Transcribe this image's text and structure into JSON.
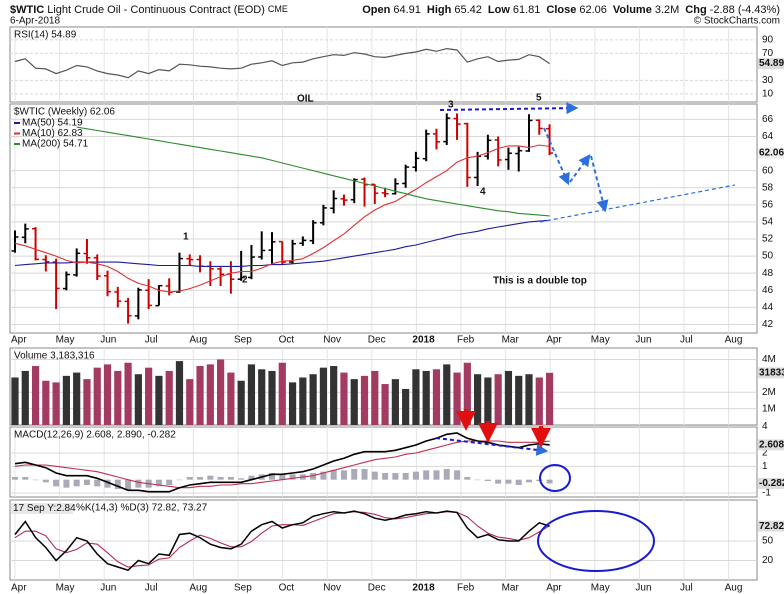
{
  "header": {
    "symbol": "$WTIC",
    "name": "Light Crude Oil - Continuous Contract (EOD)",
    "exchange": "CME",
    "date": "6-Apr-2018",
    "credit": "© StockCharts.com",
    "quote": [
      {
        "label": "Open",
        "value": "64.91"
      },
      {
        "label": "High",
        "value": "65.42"
      },
      {
        "label": "Low",
        "value": "61.81"
      },
      {
        "label": "Close",
        "value": "62.06"
      },
      {
        "label": "Volume",
        "value": "3.2M"
      },
      {
        "label": "Chg",
        "value": "-2.88 (-4.43%)"
      }
    ]
  },
  "x_axis": {
    "labels": [
      "Apr",
      "May",
      "Jun",
      "Jul",
      "Aug",
      "Sep",
      "Oct",
      "Nov",
      "Dec",
      "2018",
      "Feb",
      "Mar",
      "Apr",
      "May",
      "Jun",
      "Jul",
      "Aug"
    ]
  },
  "chart_data": [
    {
      "type": "line",
      "title": "RSI(14) 54.89",
      "color": "#555555",
      "ylim": [
        -2,
        109
      ],
      "yticks": [
        10,
        30,
        70,
        90
      ],
      "grid": true,
      "values": [
        58,
        62,
        48,
        47,
        40,
        45,
        52,
        50,
        44,
        40,
        38,
        34,
        44,
        40,
        46,
        44,
        54,
        53,
        51,
        50,
        48,
        47,
        48,
        54,
        56,
        59,
        52,
        56,
        57,
        62,
        65,
        68,
        67,
        71,
        69,
        65,
        64,
        67,
        70,
        72,
        76,
        73,
        77,
        75,
        57,
        62,
        65,
        58,
        60,
        61,
        68,
        65,
        54.89
      ]
    },
    {
      "type": "ohlc",
      "title": "$WTIC (Weekly) 62.06",
      "up_color": "#000000",
      "down_color": "#cc0000",
      "ylim": [
        41,
        67.8
      ],
      "yticks": [
        42,
        44,
        46,
        48,
        50,
        52,
        54,
        56,
        58,
        60,
        64,
        66
      ],
      "grid": true,
      "open": [
        50.6,
        52.2,
        53.2,
        49.6,
        49.3,
        46.2,
        47.8,
        50.3,
        49.8,
        47.7,
        45.8,
        44.7,
        43.0,
        46.0,
        44.2,
        46.5,
        45.8,
        49.7,
        49.6,
        48.8,
        48.5,
        47.9,
        47.3,
        47.5,
        49.9,
        50.7,
        51.7,
        49.3,
        51.5,
        51.8,
        53.9,
        55.6,
        56.7,
        56.6,
        59.0,
        58.4,
        57.4,
        57.3,
        58.5,
        60.4,
        61.4,
        64.3,
        63.4,
        66.1,
        65.5,
        59.2,
        61.7,
        63.6,
        61.3,
        62.0,
        62.3,
        65.9,
        64.91
      ],
      "high": [
        53.0,
        53.8,
        53.4,
        50.1,
        49.7,
        48.2,
        50.9,
        52.0,
        50.2,
        48.3,
        46.4,
        45.1,
        46.3,
        47.3,
        46.6,
        47.4,
        50.4,
        50.2,
        50.1,
        49.4,
        48.7,
        49.4,
        50.6,
        51.3,
        52.9,
        52.8,
        51.7,
        51.9,
        52.3,
        54.2,
        56.0,
        57.7,
        57.2,
        59.1,
        59.2,
        58.4,
        58.0,
        59.1,
        60.7,
        62.2,
        64.8,
        64.9,
        66.7,
        66.7,
        65.6,
        62.2,
        64.2,
        64.0,
        62.7,
        62.8,
        66.6,
        66.0,
        65.42
      ],
      "low": [
        50.4,
        51.5,
        49.5,
        48.2,
        43.8,
        46.0,
        47.6,
        49.1,
        47.2,
        45.3,
        44.0,
        42.1,
        42.6,
        43.8,
        44.2,
        45.4,
        45.7,
        48.9,
        48.1,
        46.5,
        46.5,
        45.6,
        47.1,
        47.3,
        49.6,
        49.1,
        49.0,
        49.1,
        51.2,
        51.4,
        53.6,
        55.0,
        55.9,
        56.2,
        55.8,
        56.1,
        56.9,
        57.2,
        58.0,
        59.9,
        61.1,
        62.5,
        63.0,
        63.6,
        58.1,
        58.2,
        61.3,
        60.5,
        60.1,
        59.9,
        62.2,
        64.2,
        61.81
      ],
      "close": [
        52.24,
        53.18,
        49.62,
        49.33,
        46.22,
        47.84,
        50.33,
        49.8,
        47.66,
        45.83,
        44.74,
        43.01,
        46.04,
        44.23,
        46.54,
        45.77,
        49.71,
        49.58,
        48.82,
        48.51,
        47.87,
        47.29,
        47.48,
        49.89,
        50.66,
        51.67,
        49.29,
        51.45,
        51.84,
        53.9,
        55.64,
        56.74,
        56.55,
        58.95,
        58.36,
        57.36,
        57.3,
        58.47,
        60.42,
        61.44,
        64.3,
        63.37,
        66.14,
        65.45,
        59.2,
        61.68,
        63.55,
        61.25,
        62.04,
        62.34,
        65.88,
        64.94,
        62.06
      ],
      "series": [
        {
          "name": "MA(50) 54.19",
          "color": "#1c1c9c",
          "values": [
            48.9,
            49.0,
            49.1,
            49.2,
            49.2,
            49.2,
            49.3,
            49.3,
            49.3,
            49.3,
            49.3,
            49.2,
            49.1,
            49.0,
            48.9,
            48.9,
            48.9,
            48.9,
            48.8,
            48.8,
            48.8,
            48.8,
            48.8,
            48.9,
            48.9,
            49.0,
            49.0,
            49.1,
            49.2,
            49.3,
            49.4,
            49.6,
            49.8,
            50.0,
            50.2,
            50.4,
            50.6,
            50.8,
            51.1,
            51.3,
            51.6,
            51.9,
            52.2,
            52.5,
            52.7,
            52.9,
            53.2,
            53.4,
            53.6,
            53.8,
            54.0,
            54.1,
            54.19
          ]
        },
        {
          "name": "MA(10) 62.83",
          "color": "#e03030",
          "values": [
            51.5,
            51.2,
            50.8,
            50.4,
            50.0,
            49.5,
            49.2,
            49.3,
            49.1,
            48.8,
            48.2,
            47.4,
            46.8,
            46.5,
            46.0,
            45.8,
            45.9,
            46.2,
            46.6,
            47.1,
            47.6,
            48.0,
            48.2,
            48.2,
            48.6,
            49.1,
            49.4,
            49.5,
            49.7,
            50.3,
            51.0,
            51.8,
            52.6,
            53.6,
            54.6,
            55.4,
            56.0,
            56.4,
            57.1,
            57.8,
            58.6,
            59.3,
            60.0,
            61.0,
            61.5,
            61.7,
            62.1,
            62.6,
            62.9,
            62.9,
            62.7,
            63.0,
            62.83
          ]
        },
        {
          "name": "MA(200) 54.71",
          "color": "#2e8b2e",
          "values": [
            null,
            null,
            null,
            null,
            null,
            null,
            65.1,
            64.9,
            64.7,
            64.5,
            64.3,
            64.1,
            63.9,
            63.7,
            63.5,
            63.3,
            63.1,
            62.9,
            62.7,
            62.5,
            62.3,
            62.1,
            61.9,
            61.7,
            61.5,
            61.2,
            60.9,
            60.6,
            60.3,
            60.0,
            59.7,
            59.4,
            59.1,
            58.8,
            58.5,
            58.2,
            57.9,
            57.6,
            57.3,
            57.0,
            56.7,
            56.5,
            56.3,
            56.1,
            55.9,
            55.7,
            55.5,
            55.3,
            55.2,
            55.0,
            54.9,
            54.8,
            54.71
          ]
        }
      ],
      "annotations": [
        {
          "text": "OIL",
          "color": "#e8141b"
        },
        {
          "text": "1",
          "color": "#e020c0"
        },
        {
          "text": "2",
          "color": "#e020c0"
        },
        {
          "text": "3",
          "color": "#e020c0"
        },
        {
          "text": "4",
          "color": "#e020c0"
        },
        {
          "text": "5",
          "color": "#e020c0"
        },
        {
          "text": "This is a double top",
          "color": "#e8141b"
        }
      ]
    },
    {
      "type": "bar",
      "title": "Volume 3,183,316",
      "up_color": "#333333",
      "down_color": "#a33a62",
      "ylim": [
        0,
        4700000
      ],
      "grid": true,
      "yticks": [
        {
          "value": 1000000,
          "label": "1M"
        },
        {
          "value": 2000000,
          "label": "2M"
        },
        {
          "value": 4000000,
          "label": "4M"
        }
      ],
      "values": [
        2900000,
        3300000,
        3600000,
        2700000,
        2600000,
        3000000,
        3200000,
        2800000,
        3500000,
        3700000,
        3300000,
        3800000,
        3100000,
        3500000,
        3000000,
        3300000,
        3900000,
        2800000,
        3600000,
        3700000,
        4000000,
        3200000,
        2700000,
        3700000,
        3400000,
        3300000,
        3800000,
        2600000,
        2900000,
        3100000,
        3500000,
        3600000,
        3200000,
        2800000,
        3000000,
        3300000,
        2500000,
        2800000,
        2200000,
        3400000,
        3300000,
        3400000,
        3700000,
        3200000,
        3800000,
        3100000,
        2900000,
        3100000,
        3300000,
        3000000,
        3100000,
        2900000,
        3183316
      ]
    },
    {
      "type": "macd",
      "title": "MACD(12,26,9) 2.608, 2.890, -0.282",
      "macd_color": "#000000",
      "signal_color": "#c03050",
      "histogram_color": "#a9a9b8",
      "ylim": [
        -1.3,
        3.95
      ],
      "yticks": [
        -1,
        1,
        2,
        4
      ],
      "grid": true,
      "macd": [
        1.2,
        1.3,
        1.1,
        0.9,
        0.5,
        0.3,
        0.3,
        0.3,
        0.1,
        -0.2,
        -0.5,
        -0.8,
        -0.8,
        -0.9,
        -0.9,
        -0.9,
        -0.6,
        -0.4,
        -0.3,
        -0.2,
        -0.2,
        -0.2,
        -0.2,
        0.0,
        0.2,
        0.4,
        0.4,
        0.5,
        0.6,
        0.8,
        1.1,
        1.4,
        1.6,
        1.9,
        2.1,
        2.1,
        2.1,
        2.2,
        2.4,
        2.6,
        2.9,
        3.1,
        3.4,
        3.5,
        3.1,
        2.9,
        2.8,
        2.6,
        2.5,
        2.4,
        2.6,
        2.7,
        2.608
      ],
      "signal": [
        1.0,
        1.1,
        1.1,
        1.1,
        1.0,
        0.9,
        0.8,
        0.7,
        0.6,
        0.4,
        0.2,
        0.0,
        -0.2,
        -0.3,
        -0.4,
        -0.5,
        -0.6,
        -0.6,
        -0.5,
        -0.5,
        -0.4,
        -0.4,
        -0.3,
        -0.3,
        -0.2,
        -0.1,
        0.0,
        0.1,
        0.2,
        0.3,
        0.5,
        0.7,
        0.9,
        1.1,
        1.3,
        1.5,
        1.6,
        1.7,
        1.9,
        2.0,
        2.2,
        2.4,
        2.6,
        2.8,
        2.9,
        2.9,
        2.9,
        2.9,
        2.8,
        2.8,
        2.8,
        2.8,
        2.89
      ],
      "histogram": [
        0.2,
        0.2,
        0.0,
        -0.2,
        -0.5,
        -0.6,
        -0.5,
        -0.4,
        -0.5,
        -0.6,
        -0.7,
        -0.8,
        -0.6,
        -0.6,
        -0.5,
        -0.4,
        0.0,
        0.2,
        0.2,
        0.3,
        0.2,
        0.2,
        0.1,
        0.3,
        0.4,
        0.5,
        0.4,
        0.4,
        0.4,
        0.5,
        0.6,
        0.7,
        0.7,
        0.8,
        0.8,
        0.6,
        0.5,
        0.5,
        0.5,
        0.6,
        0.7,
        0.7,
        0.8,
        0.7,
        0.2,
        0.0,
        -0.1,
        -0.3,
        -0.3,
        -0.4,
        -0.2,
        -0.1,
        -0.282
      ]
    },
    {
      "type": "stochastic",
      "title": "%K(14,3) %D(3) 72.82, 73.27",
      "cursor_label": "17 Sep Y:2.84",
      "k_color": "#000000",
      "d_color": "#b03050",
      "ylim": [
        -10,
        113
      ],
      "yticks": [
        20,
        50
      ],
      "grid": true,
      "k": [
        60,
        80,
        55,
        40,
        20,
        35,
        55,
        50,
        30,
        15,
        10,
        5,
        20,
        15,
        30,
        28,
        60,
        62,
        55,
        45,
        40,
        38,
        45,
        65,
        75,
        80,
        70,
        75,
        78,
        88,
        92,
        95,
        93,
        96,
        92,
        85,
        82,
        85,
        90,
        92,
        95,
        93,
        96,
        94,
        70,
        55,
        60,
        52,
        50,
        50,
        65,
        78,
        72.82
      ],
      "d": [
        55,
        65,
        65,
        58,
        38,
        32,
        37,
        47,
        45,
        32,
        18,
        10,
        12,
        13,
        22,
        24,
        40,
        50,
        59,
        54,
        47,
        41,
        41,
        49,
        62,
        73,
        75,
        75,
        74,
        80,
        86,
        92,
        93,
        95,
        94,
        91,
        86,
        84,
        86,
        89,
        92,
        93,
        95,
        94,
        87,
        73,
        62,
        56,
        54,
        51,
        55,
        64,
        73.27
      ]
    }
  ]
}
